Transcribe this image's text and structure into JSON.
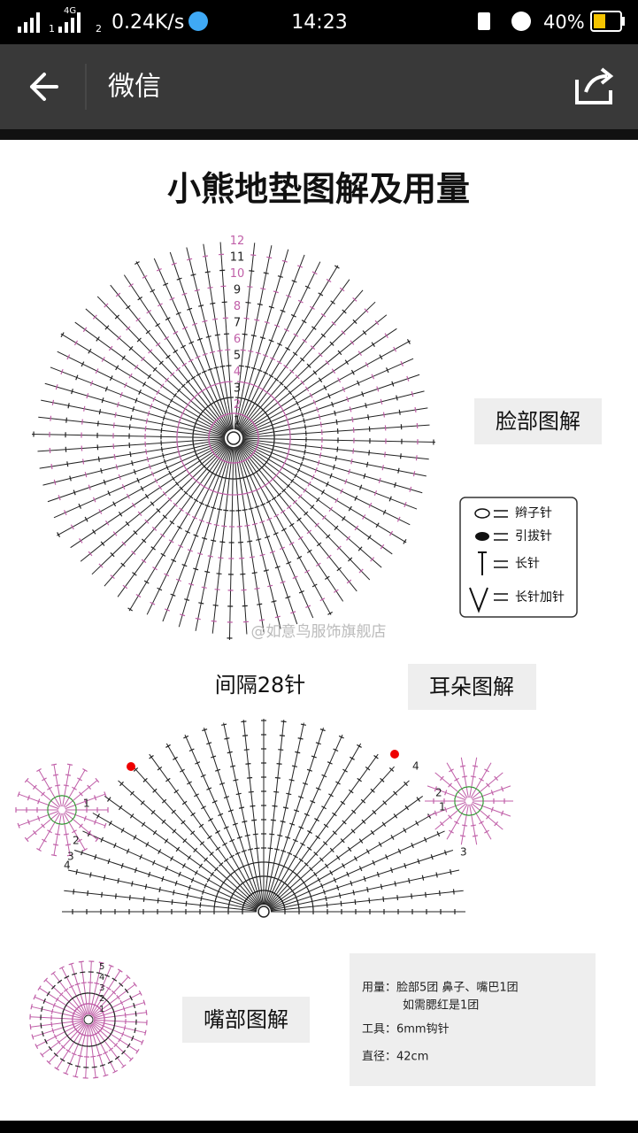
{
  "status_bar": {
    "network": "4G",
    "sim_1": "1",
    "sim_2": "2",
    "speed": "0.24K/s",
    "time": "14:23",
    "battery": "40%"
  },
  "nav": {
    "title": "微信"
  },
  "article": {
    "title": "小熊地垫图解及用量",
    "face": {
      "label": "脸部图解",
      "rows": [
        1,
        2,
        3,
        4,
        5,
        6,
        7,
        8,
        9,
        10,
        11,
        12
      ]
    },
    "legend": [
      "辫子针",
      "引拔针",
      "长针",
      "长针加针"
    ],
    "watermark": "@如意鸟服饰旗舰店",
    "ear": {
      "note": "间隔28针",
      "label": "耳朵图解",
      "left_rows": [
        1,
        2,
        3,
        4
      ],
      "right_rows": [
        1,
        2,
        3,
        4
      ]
    },
    "mouth": {
      "label": "嘴部图解",
      "rows": [
        1,
        2,
        3,
        4,
        5
      ]
    },
    "info": [
      "用量：脸部5团 鼻子、嘴巴1团",
      "如需腮红是1团",
      "工具：6mm钩针",
      "直径：42cm"
    ]
  }
}
